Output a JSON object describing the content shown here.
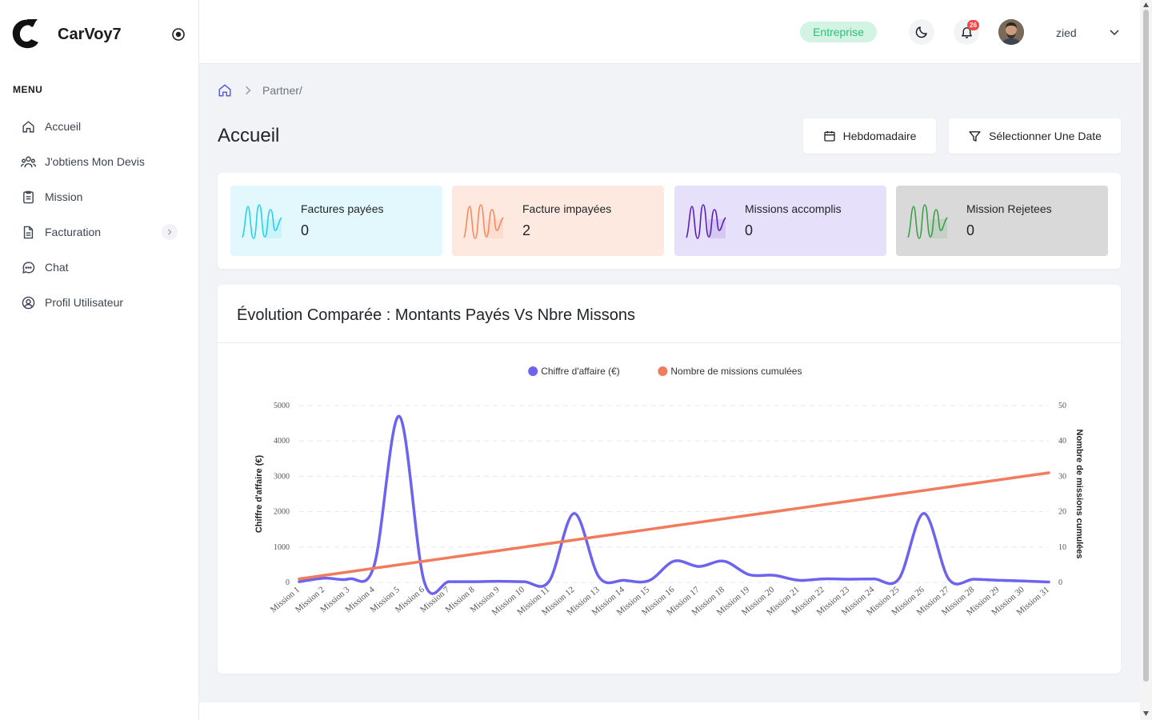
{
  "brand": {
    "name": "CarVoy7"
  },
  "sidebar": {
    "menu_title": "MENU",
    "items": [
      {
        "label": "Accueil",
        "icon": "home-icon"
      },
      {
        "label": "J'obtiens Mon Devis",
        "icon": "users-icon"
      },
      {
        "label": "Mission",
        "icon": "clipboard-icon"
      },
      {
        "label": "Facturation",
        "icon": "document-icon"
      },
      {
        "label": "Chat",
        "icon": "chat-icon"
      },
      {
        "label": "Profil Utilisateur",
        "icon": "user-circle-icon"
      }
    ]
  },
  "topbar": {
    "plan_badge": "Entreprise",
    "notification_count": "26",
    "username": "zied"
  },
  "breadcrumb": {
    "path": "Partner/"
  },
  "page": {
    "title": "Accueil"
  },
  "actions": {
    "weekly_label": "Hebdomadaire",
    "date_label": "Sélectionner Une Date"
  },
  "stats": [
    {
      "label": "Factures payées",
      "value": "0",
      "color": "#22d3ee",
      "bg": "#e3f8fc"
    },
    {
      "label": "Facture impayées",
      "value": "2",
      "color": "#f48a5f",
      "bg": "#fde9df"
    },
    {
      "label": "Missions accomplis",
      "value": "0",
      "color": "#5b21b6",
      "bg": "#e6e0fb"
    },
    {
      "label": "Mission Rejetees",
      "value": "0",
      "color": "#3aa04a",
      "bg": "#d9d9d9"
    }
  ],
  "chart_card": {
    "title": "Évolution Comparée : Montants Payés Vs Nbre Missons"
  },
  "chart_data": {
    "type": "line",
    "categories": [
      "Mission 1",
      "Mission 2",
      "Mission 3",
      "Mission 4",
      "Mission 5",
      "Mission 6",
      "Mission 7",
      "Mission 8",
      "Mission 9",
      "Mission 10",
      "Mission 11",
      "Mission 12",
      "Mission 13",
      "Mission 14",
      "Mission 15",
      "Mission 16",
      "Mission 17",
      "Mission 18",
      "Mission 19",
      "Mission 20",
      "Mission 21",
      "Mission 22",
      "Mission 23",
      "Mission 24",
      "Mission 25",
      "Mission 26",
      "Mission 27",
      "Mission 28",
      "Mission 29",
      "Mission 30",
      "Mission 31"
    ],
    "series": [
      {
        "name": "Chiffre d'affaire (€)",
        "axis": "left",
        "color": "#6c63ef",
        "values": [
          20,
          120,
          100,
          480,
          4700,
          30,
          20,
          20,
          30,
          20,
          30,
          1950,
          150,
          60,
          50,
          600,
          450,
          600,
          220,
          200,
          60,
          100,
          90,
          100,
          100,
          1950,
          90,
          90,
          60,
          40,
          10
        ]
      },
      {
        "name": "Nombre de missions cumulées",
        "axis": "right",
        "color": "#f07c5c",
        "values": [
          1,
          2,
          3,
          4,
          5,
          6,
          7,
          8,
          9,
          10,
          11,
          12,
          13,
          14,
          15,
          16,
          17,
          18,
          19,
          20,
          21,
          22,
          23,
          24,
          25,
          26,
          27,
          28,
          29,
          30,
          31
        ]
      }
    ],
    "ylabel": "Chiffre d'affaire (€)",
    "ylabel_right": "Nombre de missions cumulées",
    "ylim": [
      0,
      5000
    ],
    "ylim_right": [
      0,
      50
    ],
    "yticks": [
      "0",
      "1000",
      "2000",
      "3000",
      "4000",
      "5000"
    ],
    "yticks_right": [
      "0",
      "10",
      "20",
      "30",
      "40",
      "50"
    ],
    "legend_position": "top-center",
    "grid": true
  }
}
